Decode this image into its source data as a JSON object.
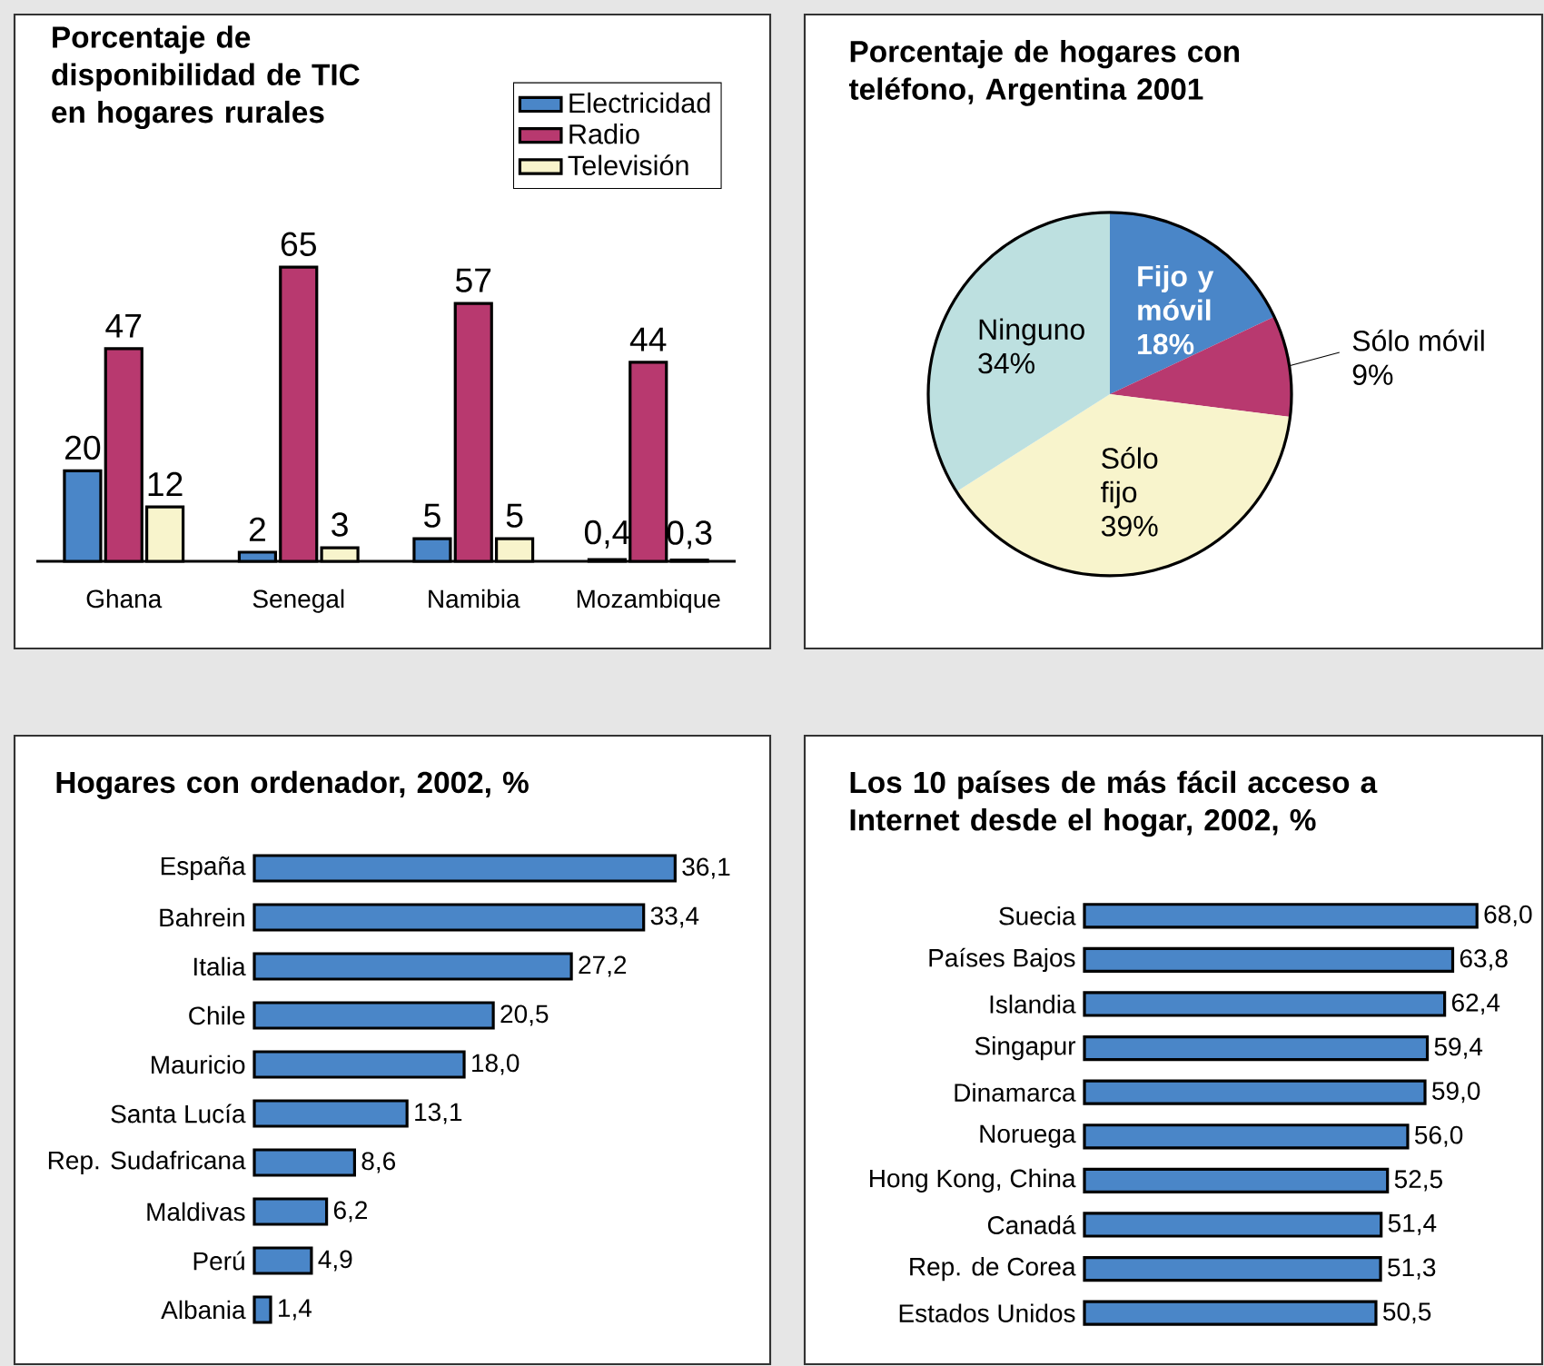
{
  "chart_data": [
    {
      "type": "bar",
      "title": "Porcentaje de disponibilidad de TIC en hogares rurales",
      "categories": [
        "Ghana",
        "Senegal",
        "Namibia",
        "Mozambique"
      ],
      "legend": "top right",
      "series": [
        {
          "name": "Electricidad",
          "color": "#4a86c8",
          "values": [
            20,
            2,
            5,
            0.4
          ],
          "value_labels": [
            "20",
            "2",
            "5",
            "0,4"
          ]
        },
        {
          "name": "Radio",
          "color": "#b8396f",
          "values": [
            47,
            65,
            57,
            44
          ],
          "value_labels": [
            "47",
            "65",
            "57",
            "44"
          ]
        },
        {
          "name": "Televisión",
          "color": "#f8f4cc",
          "values": [
            12,
            3,
            5,
            0.3
          ],
          "value_labels": [
            "12",
            "3",
            "5",
            "0,3"
          ]
        }
      ]
    },
    {
      "type": "pie",
      "title": "Porcentaje de hogares con teléfono, Argentina 2001",
      "categories": [
        "Fijo y móvil",
        "Sólo móvil",
        "Sólo fijo",
        "Ninguno"
      ],
      "values": [
        18,
        9,
        39,
        34
      ],
      "value_labels": [
        "18%",
        "9%",
        "39%",
        "34%"
      ],
      "colors": [
        "#4a86c8",
        "#b8396f",
        "#f8f4cc",
        "#bde0e0"
      ]
    },
    {
      "type": "bar",
      "orientation": "horizontal",
      "title": "Hogares con ordenador, 2002, %",
      "categories": [
        "España",
        "Bahrein",
        "Italia",
        "Chile",
        "Mauricio",
        "Santa Lucía",
        "Rep. Sudafricana",
        "Maldivas",
        "Perú",
        "Albania"
      ],
      "color": "#4a86c8",
      "values": [
        36.1,
        33.4,
        27.2,
        20.5,
        18.0,
        13.1,
        8.6,
        6.2,
        4.9,
        1.4
      ],
      "value_labels": [
        "36,1",
        "33,4",
        "27,2",
        "20,5",
        "18,0",
        "13,1",
        "8,6",
        "6,2",
        "4,9",
        "1,4"
      ]
    },
    {
      "type": "bar",
      "orientation": "horizontal",
      "title": "Los 10 países de más fácil acceso a Internet desde el hogar, 2002, %",
      "categories": [
        "Suecia",
        "Países Bajos",
        "Islandia",
        "Singapur",
        "Dinamarca",
        "Noruega",
        "Hong Kong, China",
        "Canadá",
        "Rep. de Corea",
        "Estados Unidos"
      ],
      "color": "#4a86c8",
      "values": [
        68.0,
        63.8,
        62.4,
        59.4,
        59.0,
        56.0,
        52.5,
        51.4,
        51.3,
        50.5
      ],
      "value_labels": [
        "68,0",
        "63,8",
        "62,4",
        "59,4",
        "59,0",
        "56,0",
        "52,5",
        "51,4",
        "51,3",
        "50,5"
      ]
    }
  ]
}
